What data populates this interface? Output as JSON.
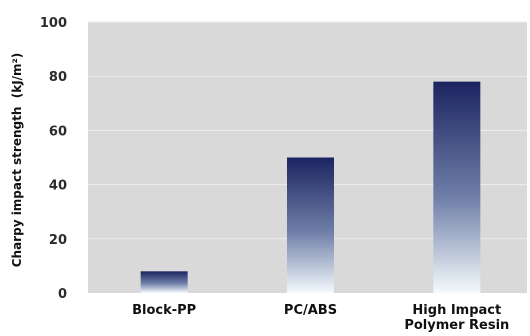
{
  "chart_data": {
    "type": "bar",
    "title": "",
    "xlabel": "",
    "ylabel": "Charpy impact strength  (kJ/m²)",
    "categories": [
      [
        "Block-PP"
      ],
      [
        "PC/ABS"
      ],
      [
        "High Impact",
        "Polymer Resin"
      ]
    ],
    "values": [
      8,
      50,
      78
    ],
    "ylim": [
      0,
      100
    ],
    "yticks": [
      0,
      20,
      40,
      60,
      80,
      100
    ],
    "grid": true,
    "legend": "none",
    "colors": {
      "plot_background": "#d9d9d9",
      "gridline": "#eeeeee",
      "bar_top": "#1c2460",
      "bar_bottom": "#f4fafc"
    }
  }
}
